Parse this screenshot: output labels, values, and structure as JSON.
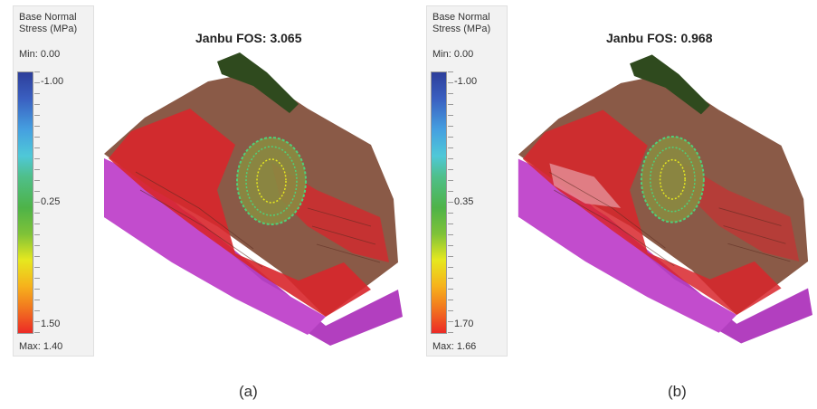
{
  "panels": [
    {
      "legend": {
        "title": "Base Normal\nStress (MPa)",
        "min_label": "Min: 0.00",
        "top_value": "-1.00",
        "mid_value": "0.25",
        "bottom_value": "1.50",
        "max_label": "Max: 1.40"
      },
      "fos_title": "Janbu FOS: 3.065",
      "caption": "(a)"
    },
    {
      "legend": {
        "title": "Base Normal\nStress (MPa)",
        "min_label": "Min: 0.00",
        "top_value": "-1.00",
        "mid_value": "0.35",
        "bottom_value": "1.70",
        "max_label": "Max: 1.66"
      },
      "fos_title": "Janbu FOS: 0.968",
      "caption": "(b)"
    }
  ],
  "colors": {
    "purple_layer": "#b23fbf",
    "brown_terrain": "#8a5a47",
    "red_zone": "#d8262b",
    "green_top": "#2f4a1e",
    "slip_mesh": "#4fd17a"
  }
}
